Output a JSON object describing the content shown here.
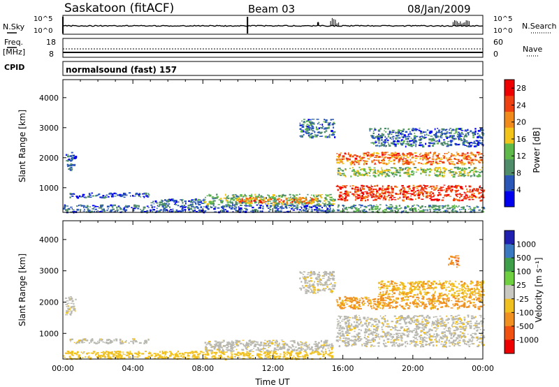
{
  "header": {
    "station": "Saskatoon (fitACF)",
    "beam": "Beam 03",
    "date": "08/Jan/2009"
  },
  "noise_panel": {
    "left_label": "N.Sky",
    "right_label": "N.Search",
    "tick_top": "10^5",
    "tick_bottom": "10^0",
    "sky_spikes_hours": [
      0.0,
      10.55
    ],
    "search_bursts": [
      {
        "start": 14.55,
        "end": 14.65,
        "level": 0.25
      },
      {
        "start": 15.3,
        "end": 15.85,
        "level": 0.55
      },
      {
        "start": 22.3,
        "end": 23.3,
        "level": 0.35
      }
    ]
  },
  "freq_panel": {
    "left_label": "Freq.",
    "left_units": "[MHz]",
    "left_ticks": [
      "18",
      "8"
    ],
    "right_label": "Nave",
    "right_ticks": [
      "60",
      "0"
    ],
    "cpid_label": "CPID",
    "cpid_text": "normalsound (fast) 157"
  },
  "colors": {
    "power_scale": [
      "#0000ee",
      "#2a56b8",
      "#4e8c6a",
      "#5fb84a",
      "#f2c41a",
      "#f08a1a",
      "#ee4010",
      "#ee0000"
    ],
    "velocity_scale": [
      "#2020b0",
      "#3a78c0",
      "#3f9e4a",
      "#6ed040",
      "#c8c8c0",
      "#f0c020",
      "#f09020",
      "#f05010",
      "#ee0000"
    ],
    "ground_scatter": "#b8b8b0"
  },
  "chart_data": [
    {
      "type": "heatmap",
      "title": "",
      "xlabel": "",
      "ylabel": "Slant Range [km]",
      "xlim": [
        0,
        24
      ],
      "ylim": [
        180,
        4600
      ],
      "yticks": [
        1000,
        2000,
        3000,
        4000
      ],
      "colorbar": {
        "label": "Power [dB]",
        "ticks": [
          "4",
          "8",
          "12",
          "16",
          "20",
          "24",
          "28"
        ],
        "range": [
          0,
          30
        ]
      },
      "regions": [
        {
          "t0": 0.1,
          "t1": 0.7,
          "r0": 1600,
          "r1": 2200,
          "value": 6
        },
        {
          "t0": 0.0,
          "t1": 15.5,
          "r0": 200,
          "r1": 450,
          "value": 6
        },
        {
          "t0": 0.3,
          "t1": 5.0,
          "r0": 700,
          "r1": 850,
          "value": 5
        },
        {
          "t0": 5.0,
          "t1": 8.0,
          "r0": 450,
          "r1": 650,
          "value": 7
        },
        {
          "t0": 8.0,
          "t1": 15.5,
          "r0": 450,
          "r1": 800,
          "value": 12
        },
        {
          "t0": 10.0,
          "t1": 14.5,
          "r0": 500,
          "r1": 700,
          "value": 22
        },
        {
          "t0": 13.5,
          "t1": 15.5,
          "r0": 2700,
          "r1": 3300,
          "value": 8
        },
        {
          "t0": 15.6,
          "t1": 24.0,
          "r0": 600,
          "r1": 1100,
          "value": 25
        },
        {
          "t0": 15.6,
          "t1": 24.0,
          "r0": 1800,
          "r1": 2200,
          "value": 22
        },
        {
          "t0": 15.6,
          "t1": 24.0,
          "r0": 1400,
          "r1": 1700,
          "value": 14
        },
        {
          "t0": 17.5,
          "t1": 24.0,
          "r0": 2400,
          "r1": 3000,
          "value": 7
        },
        {
          "t0": 15.6,
          "t1": 24.0,
          "r0": 200,
          "r1": 450,
          "value": 10
        }
      ]
    },
    {
      "type": "heatmap",
      "title": "",
      "xlabel": "Time UT",
      "ylabel": "Slant Range [km]",
      "xlim": [
        0,
        24
      ],
      "ylim": [
        180,
        4600
      ],
      "xticks": [
        "00:00",
        "04:00",
        "08:00",
        "12:00",
        "16:00",
        "20:00",
        "00:00"
      ],
      "yticks": [
        1000,
        2000,
        3000,
        4000
      ],
      "colorbar": {
        "label": "Velocity [m s⁻¹]",
        "ticks": [
          "1000",
          "500",
          "100",
          "25",
          "-25",
          "-100",
          "-500",
          "-1000"
        ]
      },
      "regions": [
        {
          "t0": 0.1,
          "t1": 0.7,
          "r0": 1600,
          "r1": 2200,
          "value": "ground"
        },
        {
          "t0": 0.3,
          "t1": 5.0,
          "r0": 700,
          "r1": 850,
          "value": "ground"
        },
        {
          "t0": 0.0,
          "t1": 15.5,
          "r0": 200,
          "r1": 450,
          "value": -60
        },
        {
          "t0": 8.0,
          "t1": 15.5,
          "r0": 450,
          "r1": 800,
          "value": "ground"
        },
        {
          "t0": 13.5,
          "t1": 15.5,
          "r0": 2300,
          "r1": 3000,
          "value": "ground"
        },
        {
          "t0": 15.6,
          "t1": 24.0,
          "r0": 600,
          "r1": 1600,
          "value": "ground"
        },
        {
          "t0": 15.6,
          "t1": 24.0,
          "r0": 1800,
          "r1": 2200,
          "value": -150
        },
        {
          "t0": 18.0,
          "t1": 24.0,
          "r0": 2200,
          "r1": 2700,
          "value": -80
        },
        {
          "t0": 22.0,
          "t1": 22.6,
          "r0": 3100,
          "r1": 3500,
          "value": -400
        }
      ]
    }
  ]
}
